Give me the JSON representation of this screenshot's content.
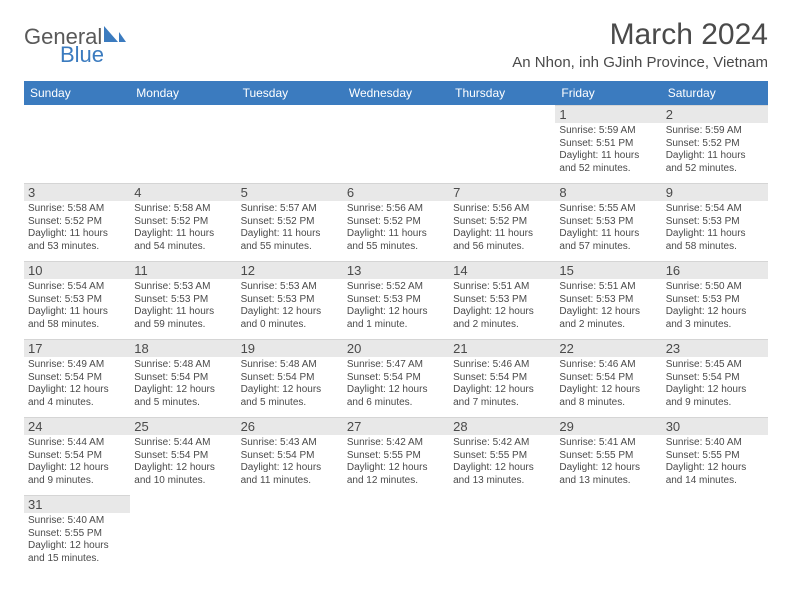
{
  "brand": {
    "general": "General",
    "blue": "Blue"
  },
  "title": "March 2024",
  "location": "An Nhon, inh GJinh Province, Vietnam",
  "header_bg": "#3b7bbf",
  "header_fg": "#ffffff",
  "daynum_bg": "#e8e8e8",
  "text_color": "#4a4a4a",
  "weekdays": [
    "Sunday",
    "Monday",
    "Tuesday",
    "Wednesday",
    "Thursday",
    "Friday",
    "Saturday"
  ],
  "weeks": [
    [
      {
        "n": "",
        "empty": true
      },
      {
        "n": "",
        "empty": true
      },
      {
        "n": "",
        "empty": true
      },
      {
        "n": "",
        "empty": true
      },
      {
        "n": "",
        "empty": true
      },
      {
        "n": "1",
        "sr": "Sunrise: 5:59 AM",
        "ss": "Sunset: 5:51 PM",
        "d1": "Daylight: 11 hours",
        "d2": "and 52 minutes."
      },
      {
        "n": "2",
        "sr": "Sunrise: 5:59 AM",
        "ss": "Sunset: 5:52 PM",
        "d1": "Daylight: 11 hours",
        "d2": "and 52 minutes."
      }
    ],
    [
      {
        "n": "3",
        "sr": "Sunrise: 5:58 AM",
        "ss": "Sunset: 5:52 PM",
        "d1": "Daylight: 11 hours",
        "d2": "and 53 minutes."
      },
      {
        "n": "4",
        "sr": "Sunrise: 5:58 AM",
        "ss": "Sunset: 5:52 PM",
        "d1": "Daylight: 11 hours",
        "d2": "and 54 minutes."
      },
      {
        "n": "5",
        "sr": "Sunrise: 5:57 AM",
        "ss": "Sunset: 5:52 PM",
        "d1": "Daylight: 11 hours",
        "d2": "and 55 minutes."
      },
      {
        "n": "6",
        "sr": "Sunrise: 5:56 AM",
        "ss": "Sunset: 5:52 PM",
        "d1": "Daylight: 11 hours",
        "d2": "and 55 minutes."
      },
      {
        "n": "7",
        "sr": "Sunrise: 5:56 AM",
        "ss": "Sunset: 5:52 PM",
        "d1": "Daylight: 11 hours",
        "d2": "and 56 minutes."
      },
      {
        "n": "8",
        "sr": "Sunrise: 5:55 AM",
        "ss": "Sunset: 5:53 PM",
        "d1": "Daylight: 11 hours",
        "d2": "and 57 minutes."
      },
      {
        "n": "9",
        "sr": "Sunrise: 5:54 AM",
        "ss": "Sunset: 5:53 PM",
        "d1": "Daylight: 11 hours",
        "d2": "and 58 minutes."
      }
    ],
    [
      {
        "n": "10",
        "sr": "Sunrise: 5:54 AM",
        "ss": "Sunset: 5:53 PM",
        "d1": "Daylight: 11 hours",
        "d2": "and 58 minutes."
      },
      {
        "n": "11",
        "sr": "Sunrise: 5:53 AM",
        "ss": "Sunset: 5:53 PM",
        "d1": "Daylight: 11 hours",
        "d2": "and 59 minutes."
      },
      {
        "n": "12",
        "sr": "Sunrise: 5:53 AM",
        "ss": "Sunset: 5:53 PM",
        "d1": "Daylight: 12 hours",
        "d2": "and 0 minutes."
      },
      {
        "n": "13",
        "sr": "Sunrise: 5:52 AM",
        "ss": "Sunset: 5:53 PM",
        "d1": "Daylight: 12 hours",
        "d2": "and 1 minute."
      },
      {
        "n": "14",
        "sr": "Sunrise: 5:51 AM",
        "ss": "Sunset: 5:53 PM",
        "d1": "Daylight: 12 hours",
        "d2": "and 2 minutes."
      },
      {
        "n": "15",
        "sr": "Sunrise: 5:51 AM",
        "ss": "Sunset: 5:53 PM",
        "d1": "Daylight: 12 hours",
        "d2": "and 2 minutes."
      },
      {
        "n": "16",
        "sr": "Sunrise: 5:50 AM",
        "ss": "Sunset: 5:53 PM",
        "d1": "Daylight: 12 hours",
        "d2": "and 3 minutes."
      }
    ],
    [
      {
        "n": "17",
        "sr": "Sunrise: 5:49 AM",
        "ss": "Sunset: 5:54 PM",
        "d1": "Daylight: 12 hours",
        "d2": "and 4 minutes."
      },
      {
        "n": "18",
        "sr": "Sunrise: 5:48 AM",
        "ss": "Sunset: 5:54 PM",
        "d1": "Daylight: 12 hours",
        "d2": "and 5 minutes."
      },
      {
        "n": "19",
        "sr": "Sunrise: 5:48 AM",
        "ss": "Sunset: 5:54 PM",
        "d1": "Daylight: 12 hours",
        "d2": "and 5 minutes."
      },
      {
        "n": "20",
        "sr": "Sunrise: 5:47 AM",
        "ss": "Sunset: 5:54 PM",
        "d1": "Daylight: 12 hours",
        "d2": "and 6 minutes."
      },
      {
        "n": "21",
        "sr": "Sunrise: 5:46 AM",
        "ss": "Sunset: 5:54 PM",
        "d1": "Daylight: 12 hours",
        "d2": "and 7 minutes."
      },
      {
        "n": "22",
        "sr": "Sunrise: 5:46 AM",
        "ss": "Sunset: 5:54 PM",
        "d1": "Daylight: 12 hours",
        "d2": "and 8 minutes."
      },
      {
        "n": "23",
        "sr": "Sunrise: 5:45 AM",
        "ss": "Sunset: 5:54 PM",
        "d1": "Daylight: 12 hours",
        "d2": "and 9 minutes."
      }
    ],
    [
      {
        "n": "24",
        "sr": "Sunrise: 5:44 AM",
        "ss": "Sunset: 5:54 PM",
        "d1": "Daylight: 12 hours",
        "d2": "and 9 minutes."
      },
      {
        "n": "25",
        "sr": "Sunrise: 5:44 AM",
        "ss": "Sunset: 5:54 PM",
        "d1": "Daylight: 12 hours",
        "d2": "and 10 minutes."
      },
      {
        "n": "26",
        "sr": "Sunrise: 5:43 AM",
        "ss": "Sunset: 5:54 PM",
        "d1": "Daylight: 12 hours",
        "d2": "and 11 minutes."
      },
      {
        "n": "27",
        "sr": "Sunrise: 5:42 AM",
        "ss": "Sunset: 5:55 PM",
        "d1": "Daylight: 12 hours",
        "d2": "and 12 minutes."
      },
      {
        "n": "28",
        "sr": "Sunrise: 5:42 AM",
        "ss": "Sunset: 5:55 PM",
        "d1": "Daylight: 12 hours",
        "d2": "and 13 minutes."
      },
      {
        "n": "29",
        "sr": "Sunrise: 5:41 AM",
        "ss": "Sunset: 5:55 PM",
        "d1": "Daylight: 12 hours",
        "d2": "and 13 minutes."
      },
      {
        "n": "30",
        "sr": "Sunrise: 5:40 AM",
        "ss": "Sunset: 5:55 PM",
        "d1": "Daylight: 12 hours",
        "d2": "and 14 minutes."
      }
    ],
    [
      {
        "n": "31",
        "sr": "Sunrise: 5:40 AM",
        "ss": "Sunset: 5:55 PM",
        "d1": "Daylight: 12 hours",
        "d2": "and 15 minutes."
      },
      {
        "n": "",
        "empty": true
      },
      {
        "n": "",
        "empty": true
      },
      {
        "n": "",
        "empty": true
      },
      {
        "n": "",
        "empty": true
      },
      {
        "n": "",
        "empty": true
      },
      {
        "n": "",
        "empty": true
      }
    ]
  ]
}
